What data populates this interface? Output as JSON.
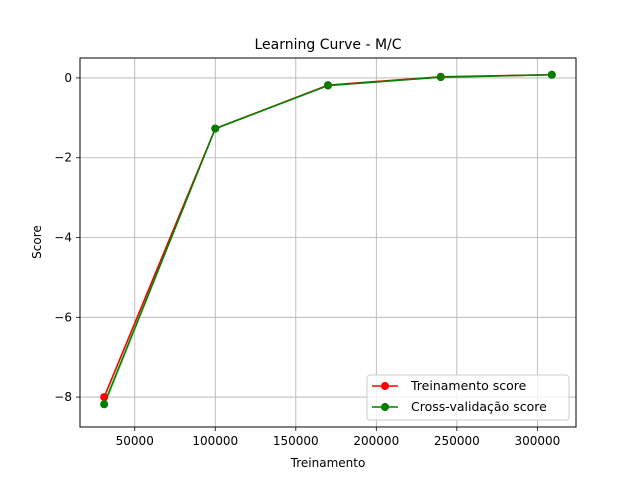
{
  "chart_data": {
    "type": "line",
    "title": "Learning Curve - M/C",
    "xlabel": "Treinamento",
    "ylabel": "Score",
    "xlim": [
      16000,
      324000
    ],
    "ylim": [
      -8.75,
      0.5
    ],
    "xticks": [
      50000,
      100000,
      150000,
      200000,
      250000,
      300000
    ],
    "yticks": [
      0,
      -2,
      -4,
      -6,
      -8
    ],
    "grid": true,
    "legend_position": "lower-right",
    "x": [
      31000,
      100000,
      170000,
      240000,
      309000
    ],
    "series": [
      {
        "name": "Treinamento score",
        "color": "#ff0000",
        "values": [
          -8.0,
          -1.27,
          -0.18,
          0.03,
          0.08
        ]
      },
      {
        "name": "Cross-validação score",
        "color": "#008000",
        "band_color": "#90ee90",
        "values": [
          -8.18,
          -1.27,
          -0.19,
          0.02,
          0.08
        ],
        "band_lower": [
          -8.3,
          -1.3,
          -0.21,
          0.01,
          0.07
        ],
        "band_upper": [
          -8.05,
          -1.24,
          -0.17,
          0.04,
          0.1
        ]
      }
    ]
  }
}
